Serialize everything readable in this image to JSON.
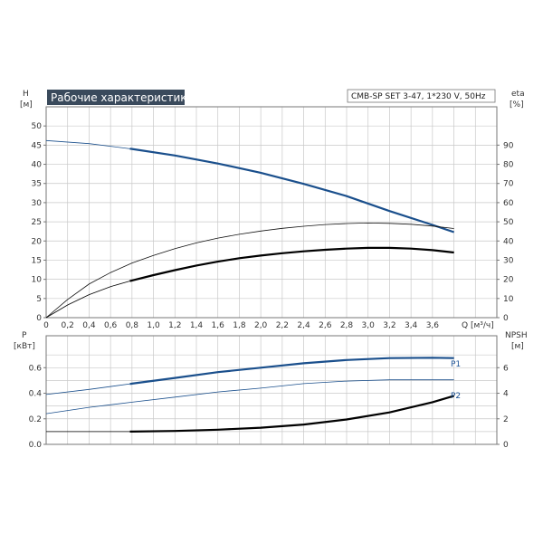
{
  "chart_data": [
    {
      "type": "line",
      "title": "Рабочие характеристики",
      "model": "CMB-SP SET 3-47, 1*230 V, 50Hz",
      "xlabel": "Q [м³/ч]",
      "ylabel": "H [м]",
      "ylabel2": "eta [%]",
      "xlim": [
        0,
        4.2
      ],
      "ylim": [
        0,
        55
      ],
      "y2lim": [
        0,
        110
      ],
      "grid": true,
      "xticks": [
        "0",
        "0,2",
        "0,4",
        "0,6",
        "0,8",
        "1,0",
        "1,2",
        "1,4",
        "1,6",
        "1,8",
        "2,0",
        "2,2",
        "2,4",
        "2,6",
        "2,8",
        "3,0",
        "3,2",
        "3,4",
        "3,6"
      ],
      "yticks": [
        "0",
        "5",
        "10",
        "15",
        "20",
        "25",
        "30",
        "35",
        "40",
        "45",
        "50"
      ],
      "y2ticks": [
        "0",
        "10",
        "20",
        "30",
        "40",
        "50",
        "60",
        "70",
        "80",
        "90"
      ],
      "series": [
        {
          "axis": "left",
          "color": "#1a4f8c",
          "style": "thin-then-thick",
          "thick_from": 0.78,
          "x": [
            0,
            0.4,
            0.8,
            1.2,
            1.6,
            2.0,
            2.4,
            2.8,
            3.2,
            3.6,
            3.8
          ],
          "y": [
            46.2,
            45.4,
            44.0,
            42.3,
            40.2,
            37.8,
            34.9,
            31.7,
            27.8,
            24.2,
            22.3
          ]
        },
        {
          "axis": "right",
          "color": "#111111",
          "style": "thin",
          "x": [
            0,
            0.2,
            0.4,
            0.6,
            0.8,
            1.0,
            1.2,
            1.4,
            1.6,
            1.8,
            2.0,
            2.2,
            2.4,
            2.6,
            2.8,
            3.0,
            3.2,
            3.4,
            3.6,
            3.8
          ],
          "y": [
            0,
            9.5,
            17.5,
            23.5,
            28.5,
            32.5,
            36.0,
            39.0,
            41.5,
            43.5,
            45.2,
            46.6,
            47.7,
            48.6,
            49.1,
            49.4,
            49.2,
            48.7,
            47.8,
            46.5
          ]
        },
        {
          "axis": "left",
          "color": "#000000",
          "style": "thin-then-thick",
          "thick_from": 0.78,
          "x": [
            0,
            0.2,
            0.4,
            0.6,
            0.8,
            1.0,
            1.2,
            1.4,
            1.6,
            1.8,
            2.0,
            2.2,
            2.4,
            2.6,
            2.8,
            3.0,
            3.2,
            3.4,
            3.6,
            3.8
          ],
          "y": [
            0,
            3.3,
            6.0,
            8.1,
            9.7,
            11.1,
            12.4,
            13.6,
            14.6,
            15.5,
            16.2,
            16.8,
            17.3,
            17.7,
            18.0,
            18.2,
            18.2,
            18.0,
            17.6,
            17.0
          ]
        }
      ]
    },
    {
      "type": "line",
      "xlabel": "",
      "ylabel": "P [кВт]",
      "ylabel2": "NPSH [м]",
      "xlim": [
        0,
        4.2
      ],
      "ylim": [
        0,
        0.85
      ],
      "y2lim": [
        0,
        8.5
      ],
      "grid": true,
      "yticks": [
        "0.0",
        "0.2",
        "0.4",
        "0.6"
      ],
      "y2ticks": [
        "0",
        "2",
        "4",
        "6"
      ],
      "series": [
        {
          "name": "P1",
          "axis": "left",
          "color": "#1a4f8c",
          "style": "thin-then-thick",
          "thick_from": 0.78,
          "x": [
            0,
            0.4,
            0.8,
            1.2,
            1.6,
            2.0,
            2.4,
            2.8,
            3.2,
            3.6,
            3.8
          ],
          "y": [
            0.39,
            0.43,
            0.475,
            0.52,
            0.565,
            0.6,
            0.635,
            0.66,
            0.675,
            0.678,
            0.675
          ]
        },
        {
          "name": "P2",
          "axis": "left",
          "color": "#1a4f8c",
          "style": "thin",
          "x": [
            0,
            0.4,
            0.8,
            1.2,
            1.6,
            2.0,
            2.4,
            2.8,
            3.2,
            3.6,
            3.8
          ],
          "y": [
            0.24,
            0.29,
            0.33,
            0.37,
            0.41,
            0.44,
            0.475,
            0.495,
            0.505,
            0.505,
            0.505
          ]
        },
        {
          "axis": "right",
          "color": "#000000",
          "style": "thin-then-thick",
          "thick_from": 0.78,
          "x": [
            0,
            0.4,
            0.8,
            1.2,
            1.6,
            2.0,
            2.4,
            2.8,
            3.2,
            3.6,
            3.8
          ],
          "y": [
            1.0,
            1.0,
            1.0,
            1.05,
            1.15,
            1.3,
            1.55,
            1.95,
            2.5,
            3.3,
            3.8
          ]
        }
      ]
    }
  ],
  "axes_labels": {
    "top_left_line1": "H",
    "top_left_line2": "[м]",
    "top_right_line1": "eta",
    "top_right_line2": "[%]",
    "bottom_left_line1": "P",
    "bottom_left_line2": "[кВт]",
    "bottom_right_line1": "NPSH",
    "bottom_right_line2": "[м]",
    "q_label": "Q [м³/ч]"
  }
}
